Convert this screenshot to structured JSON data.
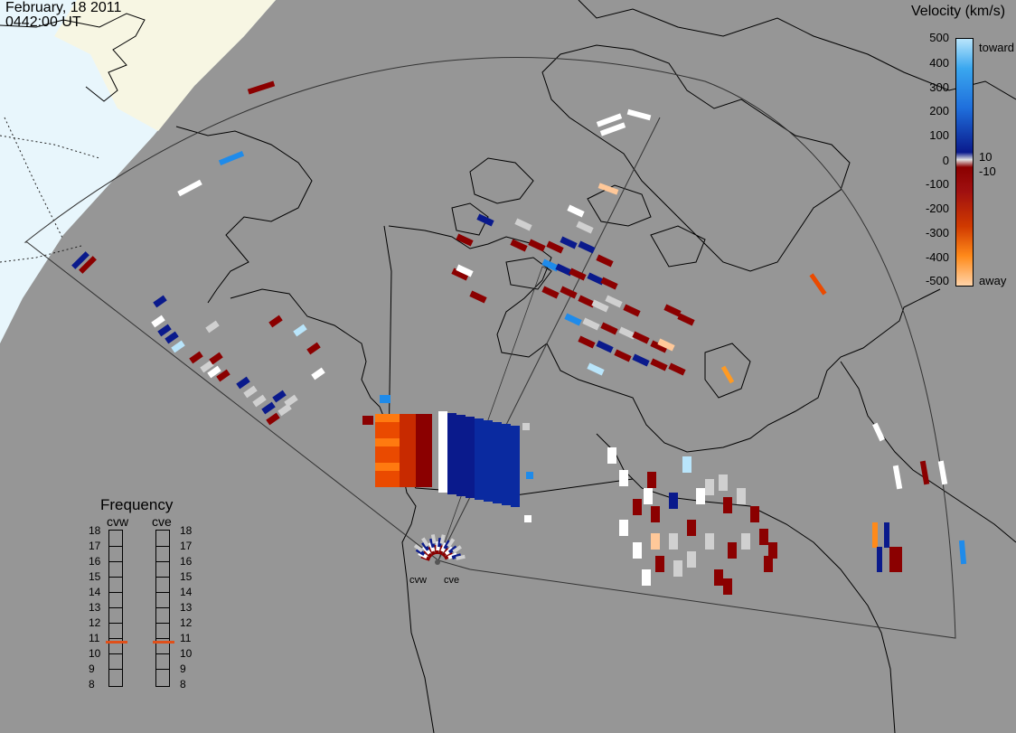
{
  "header": {
    "date": "February, 18 2011",
    "time": "0442:00 UT"
  },
  "velocity_scale": {
    "title": "Velocity (km/s)",
    "ticks": [
      "500",
      "400",
      "300",
      "200",
      "100",
      "10",
      "0",
      "-10",
      "-100",
      "-200",
      "-300",
      "-400",
      "-500"
    ],
    "toward_label": "toward",
    "away_label": "away",
    "colors": {
      "toward_light": "#b9e5fb",
      "toward_mid": "#1f8bea",
      "toward_dark": "#0a1a8c",
      "zero": "#d8d8d8",
      "away_dark": "#8b0000",
      "away_mid": "#ea4a00",
      "away_light": "#ffc899"
    }
  },
  "frequency_panel": {
    "title": "Frequency",
    "radars": [
      {
        "name": "cvw",
        "freq_mhz": 10.8
      },
      {
        "name": "cve",
        "freq_mhz": 10.8
      }
    ],
    "ticks": [
      "18",
      "17",
      "16",
      "15",
      "14",
      "13",
      "12",
      "11",
      "10",
      "9",
      "8"
    ],
    "indicator_color": "#e0501a"
  },
  "sites": [
    {
      "name": "cvw"
    },
    {
      "name": "cve"
    }
  ],
  "map": {
    "background": "#969696",
    "twilight_color": "#f6f6e6",
    "night_color": "#e8f6fc",
    "ground_scatter_color": "#d0d0d0"
  }
}
